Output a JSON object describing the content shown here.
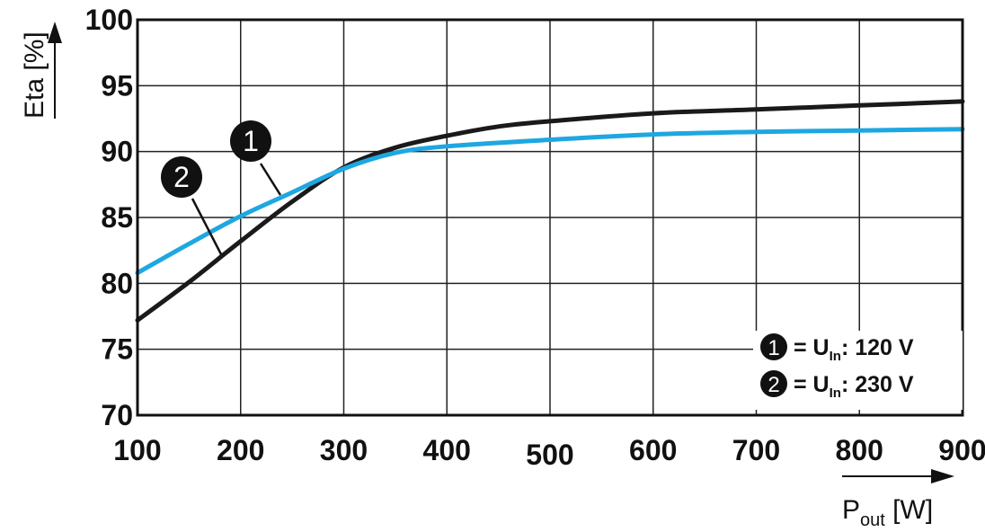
{
  "chart_data": {
    "type": "line",
    "xlabel": {
      "main": "P",
      "sub": "out",
      "unit": " [W]"
    },
    "ylabel": "Eta [%]",
    "xlim": [
      100,
      900
    ],
    "ylim": [
      70,
      100
    ],
    "x_ticks": [
      "100",
      "200",
      "300",
      "400",
      "500",
      "600",
      "700",
      "800",
      "900"
    ],
    "y_ticks": [
      "70",
      "75",
      "80",
      "85",
      "90",
      "95",
      "100"
    ],
    "grid": true,
    "series": [
      {
        "id": "1",
        "color": "#1a1a1a",
        "points": [
          [
            100,
            77.2
          ],
          [
            150,
            80.1
          ],
          [
            200,
            83.2
          ],
          [
            250,
            86.2
          ],
          [
            300,
            88.8
          ],
          [
            350,
            90.3
          ],
          [
            400,
            91.2
          ],
          [
            450,
            91.9
          ],
          [
            500,
            92.3
          ],
          [
            600,
            92.9
          ],
          [
            700,
            93.2
          ],
          [
            800,
            93.5
          ],
          [
            900,
            93.8
          ]
        ]
      },
      {
        "id": "2",
        "color": "#1ea7e1",
        "points": [
          [
            100,
            80.8
          ],
          [
            150,
            83.0
          ],
          [
            200,
            85.1
          ],
          [
            250,
            86.9
          ],
          [
            300,
            88.7
          ],
          [
            350,
            89.9
          ],
          [
            400,
            90.4
          ],
          [
            500,
            90.9
          ],
          [
            600,
            91.3
          ],
          [
            700,
            91.5
          ],
          [
            800,
            91.6
          ],
          [
            900,
            91.7
          ]
        ]
      }
    ],
    "callouts": [
      {
        "label": "1",
        "series": "1"
      },
      {
        "label": "2",
        "series": "2"
      }
    ],
    "legend": {
      "position": "bottom-right",
      "entries": [
        {
          "badge": "1",
          "prefix": "= U",
          "sub": "In",
          "suffix": ": 120 V"
        },
        {
          "badge": "2",
          "prefix": "= U",
          "sub": "In",
          "suffix": ": 230 V"
        }
      ]
    }
  }
}
